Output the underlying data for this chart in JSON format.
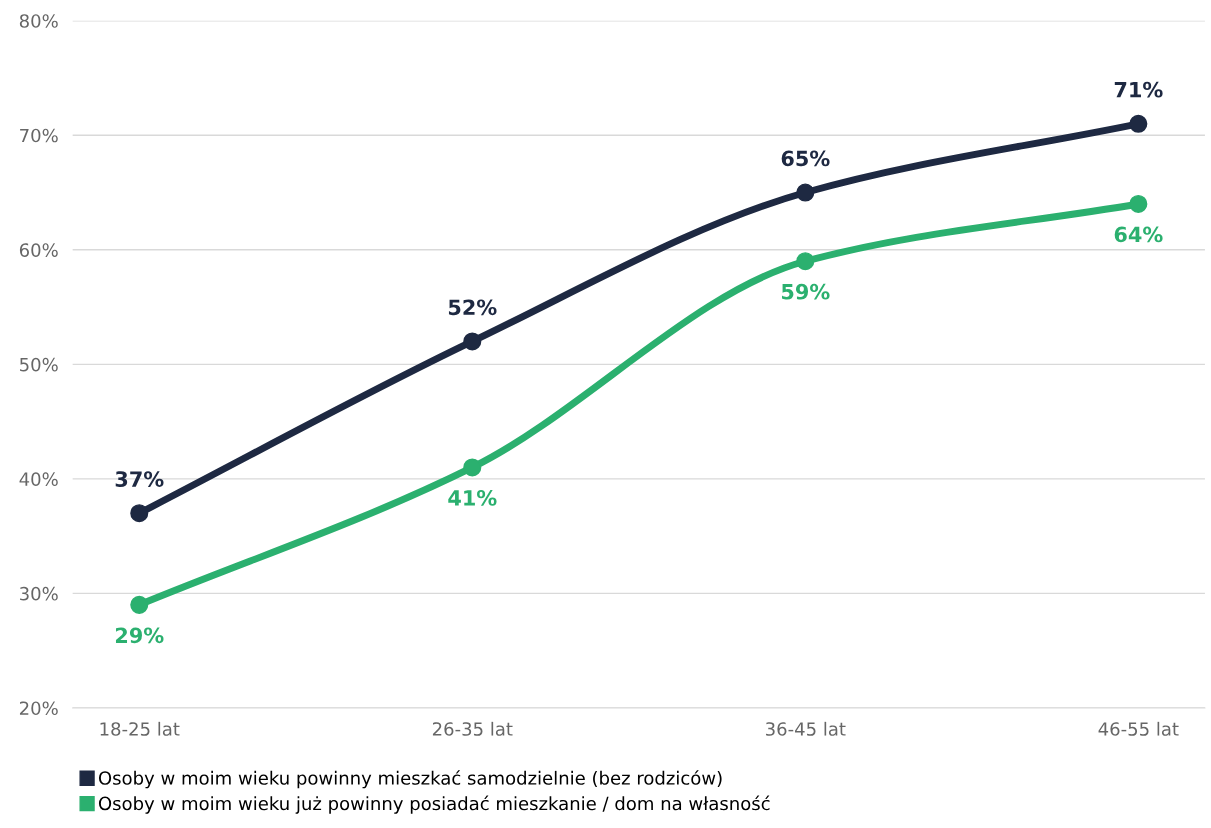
{
  "chart_data": {
    "type": "line",
    "categories": [
      "18-25 lat",
      "26-35 lat",
      "36-45 lat",
      "46-55 lat"
    ],
    "series": [
      {
        "name": "Osoby w moim wieku powinny mieszkać samodzielnie (bez rodziców)",
        "color": "#1e2942",
        "values": [
          37,
          52,
          65,
          71
        ],
        "value_labels": [
          "37%",
          "52%",
          "65%",
          "71%"
        ]
      },
      {
        "name": "Osoby w moim wieku już powinny posiadać mieszkanie / dom na własność",
        "color": "#2bb06f",
        "values": [
          29,
          41,
          59,
          64
        ],
        "value_labels": [
          "29%",
          "41%",
          "59%",
          "64%"
        ]
      }
    ],
    "ylim": [
      20,
      80
    ],
    "yticks": [
      {
        "value": 20,
        "label": "20%"
      },
      {
        "value": 30,
        "label": "30%"
      },
      {
        "value": 40,
        "label": "40%"
      },
      {
        "value": 50,
        "label": "50%"
      },
      {
        "value": 60,
        "label": "60%"
      },
      {
        "value": 70,
        "label": "70%"
      },
      {
        "value": 80,
        "label": "80%"
      }
    ],
    "grid": "y",
    "legend": "bottom",
    "marker": "circle",
    "line_style": "solid"
  }
}
